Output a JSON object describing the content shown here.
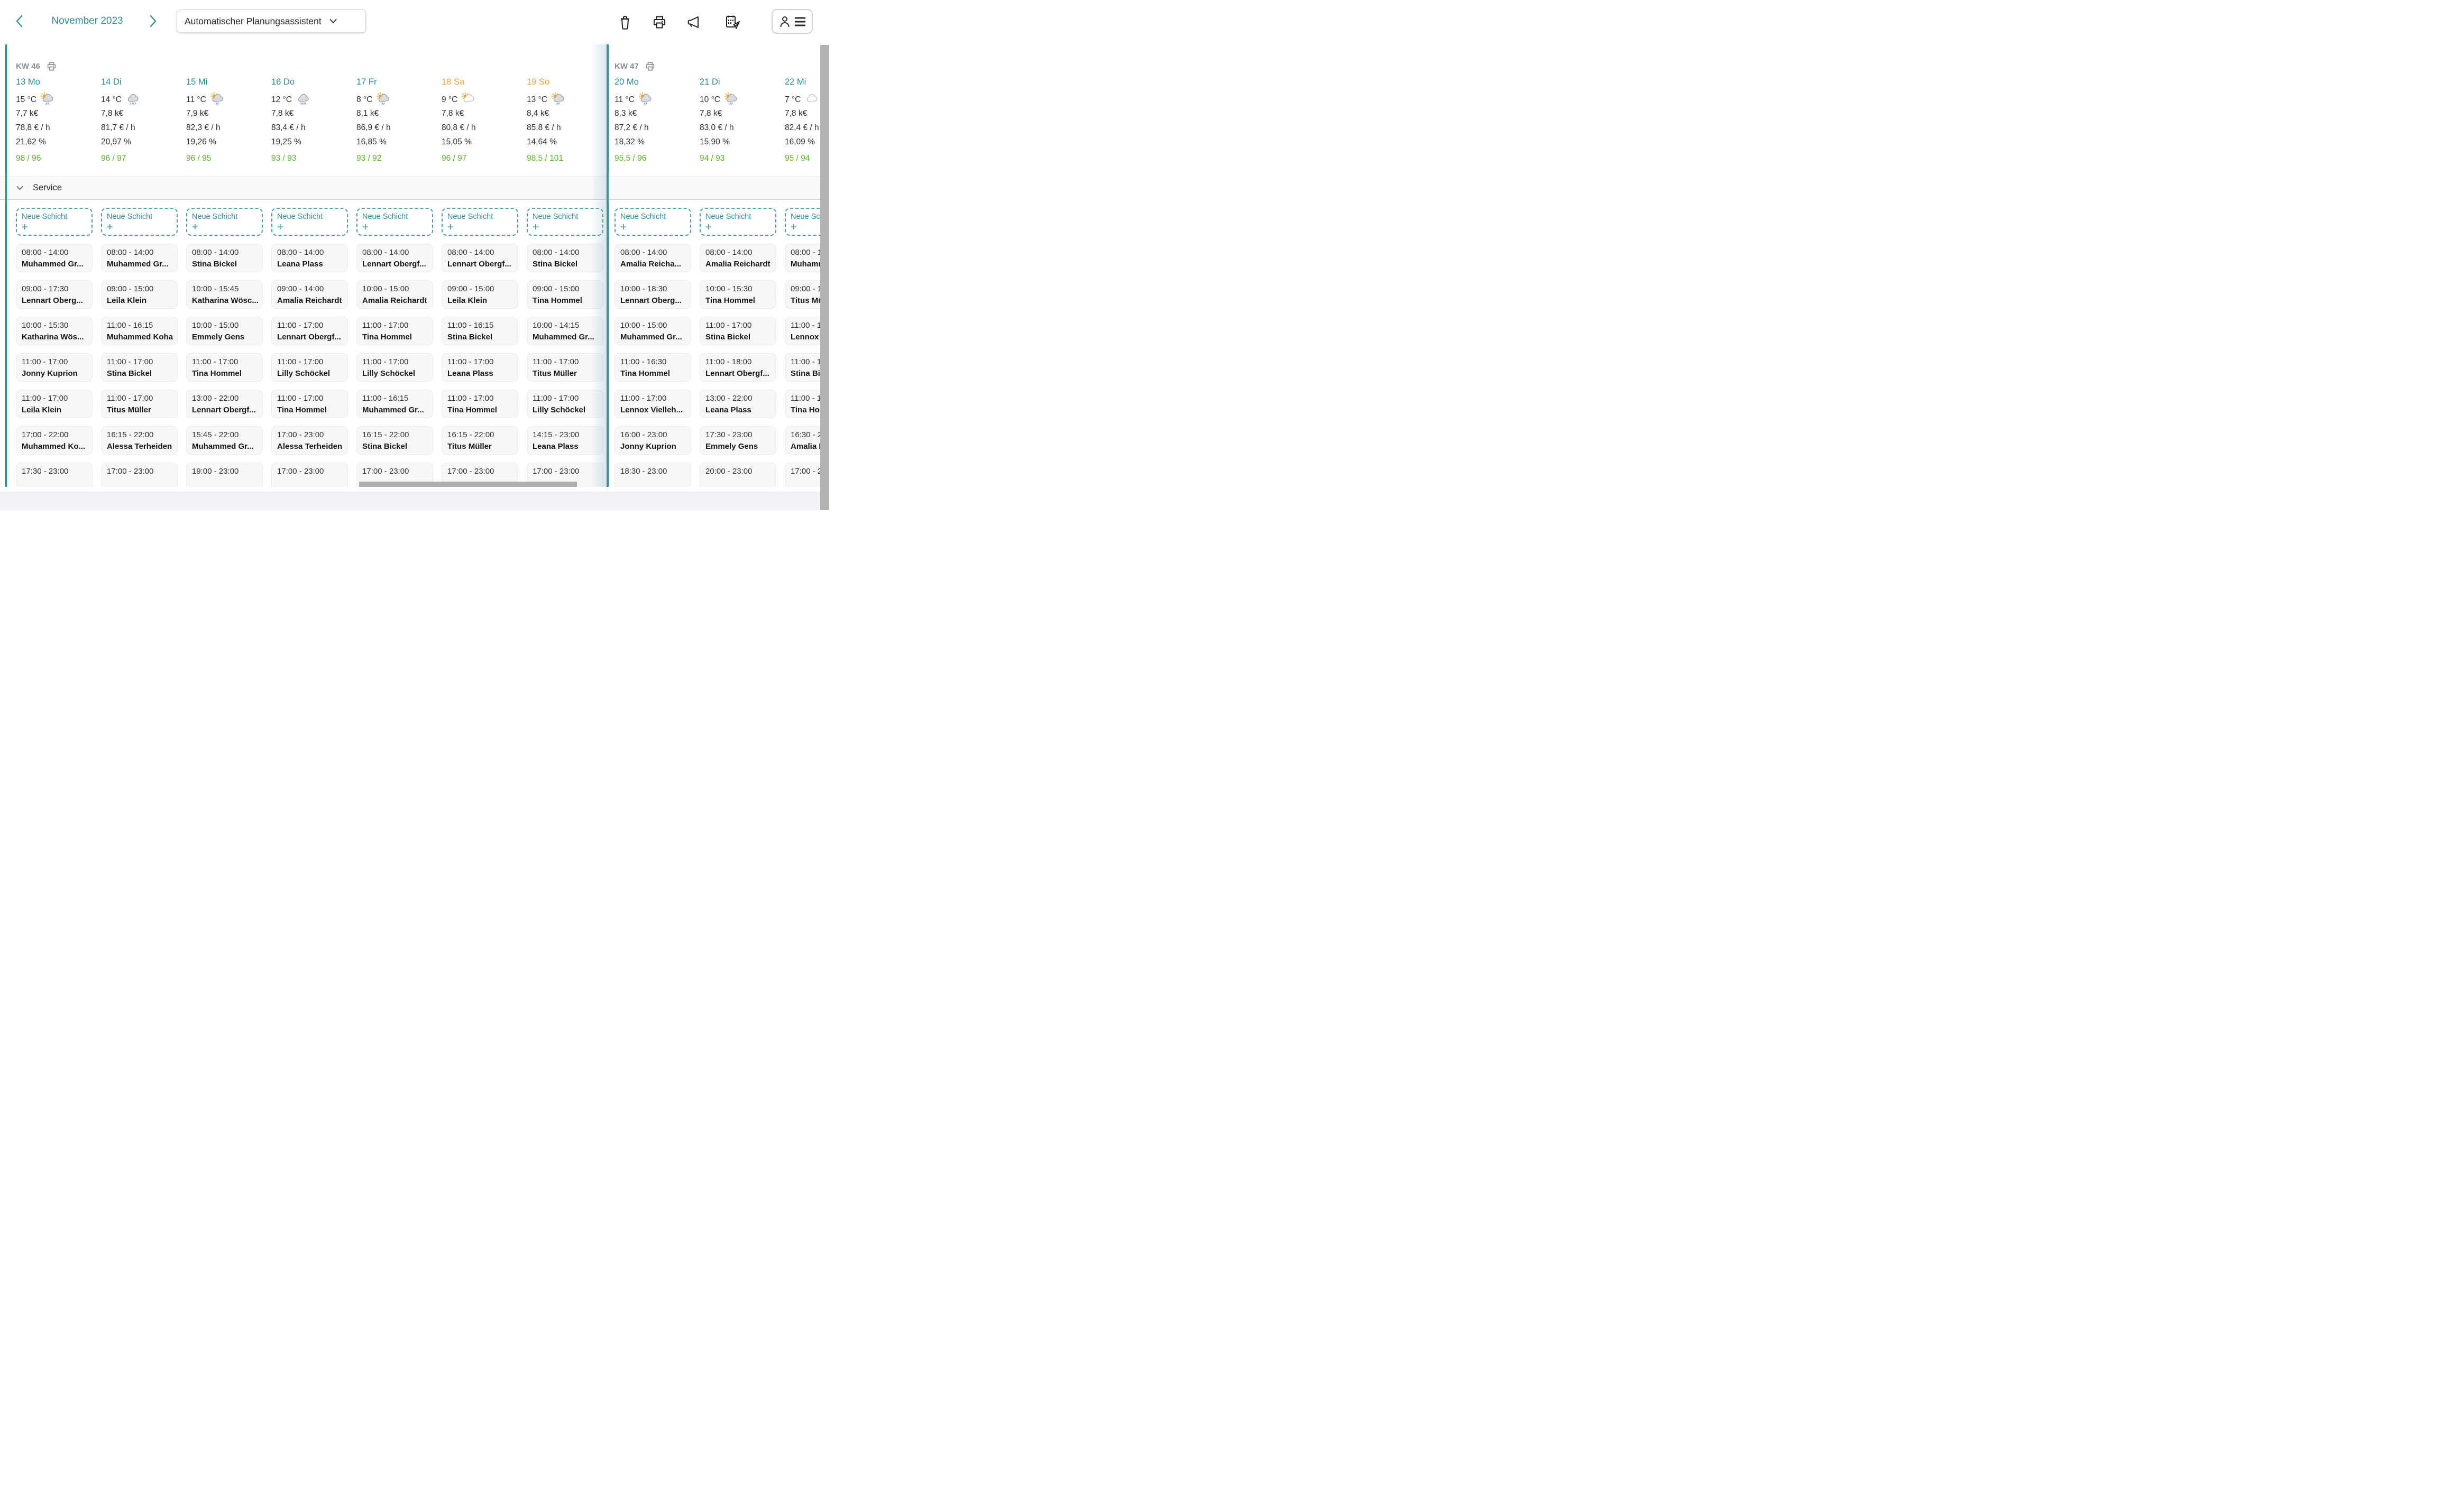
{
  "header": {
    "month_label": "November 2023",
    "planner_dropdown_label": "Automatischer Planungsassistent",
    "accent_teal": "#2E8D9B",
    "weekend_orange": "#EFA23E",
    "ok_green": "#5CB42F"
  },
  "service_section": {
    "label": "Service"
  },
  "new_shift_label": "Neue Schicht",
  "weeks": [
    {
      "label": "KW 46",
      "days": [
        {
          "date": "13 Mo",
          "weekend": false,
          "temp": "15 °C",
          "weather": "sun-cloud-rain",
          "revenue": "7,7 k€",
          "rate": "78,8 € / h",
          "percent": "21,62 %",
          "ratio": "98 / 96",
          "shifts": [
            {
              "time": "08:00 - 14:00",
              "name": "Muhammed Gr..."
            },
            {
              "time": "09:00 - 17:30",
              "name": "Lennart Oberg..."
            },
            {
              "time": "10:00 - 15:30",
              "name": "Katharina Wös..."
            },
            {
              "time": "11:00 - 17:00",
              "name": "Jonny Kuprion"
            },
            {
              "time": "11:00 - 17:00",
              "name": "Leila Klein"
            },
            {
              "time": "17:00 - 22:00",
              "name": "Muhammed Ko..."
            },
            {
              "time": "17:30 - 23:00",
              "name": ""
            }
          ]
        },
        {
          "date": "14 Di",
          "weekend": false,
          "temp": "14 °C",
          "weather": "cloud-rain",
          "revenue": "7,8 k€",
          "rate": "81,7 € / h",
          "percent": "20,97 %",
          "ratio": "96 / 97",
          "shifts": [
            {
              "time": "08:00 - 14:00",
              "name": "Muhammed Gr..."
            },
            {
              "time": "09:00 - 15:00",
              "name": "Leila Klein"
            },
            {
              "time": "11:00 - 16:15",
              "name": "Muhammed Koha"
            },
            {
              "time": "11:00 - 17:00",
              "name": "Stina Bickel"
            },
            {
              "time": "11:00 - 17:00",
              "name": "Titus Müller"
            },
            {
              "time": "16:15 - 22:00",
              "name": "Alessa Terheiden"
            },
            {
              "time": "17:00 - 23:00",
              "name": ""
            }
          ]
        },
        {
          "date": "15 Mi",
          "weekend": false,
          "temp": "11 °C",
          "weather": "sun-cloud-rain",
          "revenue": "7,9 k€",
          "rate": "82,3 € / h",
          "percent": "19,26 %",
          "ratio": "96 / 95",
          "shifts": [
            {
              "time": "08:00 - 14:00",
              "name": "Stina Bickel"
            },
            {
              "time": "10:00 - 15:45",
              "name": "Katharina Wösc..."
            },
            {
              "time": "10:00 - 15:00",
              "name": "Emmely Gens"
            },
            {
              "time": "11:00 - 17:00",
              "name": "Tina Hommel"
            },
            {
              "time": "13:00 - 22:00",
              "name": "Lennart Obergf..."
            },
            {
              "time": "15:45 - 22:00",
              "name": "Muhammed Gr..."
            },
            {
              "time": "19:00 - 23:00",
              "name": ""
            }
          ]
        },
        {
          "date": "16 Do",
          "weekend": false,
          "temp": "12 °C",
          "weather": "cloud-rain",
          "revenue": "7,8 k€",
          "rate": "83,4 € / h",
          "percent": "19,25 %",
          "ratio": "93 / 93",
          "shifts": [
            {
              "time": "08:00 - 14:00",
              "name": "Leana Plass"
            },
            {
              "time": "09:00 - 14:00",
              "name": "Amalia Reichardt"
            },
            {
              "time": "11:00 - 17:00",
              "name": "Lennart Obergf..."
            },
            {
              "time": "11:00 - 17:00",
              "name": "Lilly Schöckel"
            },
            {
              "time": "11:00 - 17:00",
              "name": "Tina Hommel"
            },
            {
              "time": "17:00 - 23:00",
              "name": "Alessa Terheiden"
            },
            {
              "time": "17:00 - 23:00",
              "name": ""
            }
          ]
        },
        {
          "date": "17 Fr",
          "weekend": false,
          "temp": "8 °C",
          "weather": "sun-cloud-rain",
          "revenue": "8,1 k€",
          "rate": "86,9 € / h",
          "percent": "16,85 %",
          "ratio": "93 / 92",
          "shifts": [
            {
              "time": "08:00 - 14:00",
              "name": "Lennart Obergf..."
            },
            {
              "time": "10:00 - 15:00",
              "name": "Amalia Reichardt"
            },
            {
              "time": "11:00 - 17:00",
              "name": "Tina Hommel"
            },
            {
              "time": "11:00 - 17:00",
              "name": "Lilly Schöckel"
            },
            {
              "time": "11:00 - 16:15",
              "name": "Muhammed Gr..."
            },
            {
              "time": "16:15 - 22:00",
              "name": "Stina Bickel"
            },
            {
              "time": "17:00 - 23:00",
              "name": ""
            }
          ]
        },
        {
          "date": "18 Sa",
          "weekend": true,
          "temp": "9 °C",
          "weather": "sun-cloud",
          "revenue": "7,8 k€",
          "rate": "80,8 € / h",
          "percent": "15,05 %",
          "ratio": "96 / 97",
          "shifts": [
            {
              "time": "08:00 - 14:00",
              "name": "Lennart Obergf..."
            },
            {
              "time": "09:00 - 15:00",
              "name": "Leila Klein"
            },
            {
              "time": "11:00 - 16:15",
              "name": "Stina Bickel"
            },
            {
              "time": "11:00 - 17:00",
              "name": "Leana Plass"
            },
            {
              "time": "11:00 - 17:00",
              "name": "Tina Hommel"
            },
            {
              "time": "16:15 - 22:00",
              "name": "Titus Müller"
            },
            {
              "time": "17:00 - 23:00",
              "name": ""
            }
          ]
        },
        {
          "date": "19 So",
          "weekend": true,
          "temp": "13 °C",
          "weather": "sun-cloud-rain",
          "revenue": "8,4 k€",
          "rate": "85,8 € / h",
          "percent": "14,64 %",
          "ratio": "98,5 / 101",
          "shifts": [
            {
              "time": "08:00 - 14:00",
              "name": "Stina Bickel"
            },
            {
              "time": "09:00 - 15:00",
              "name": "Tina Hommel"
            },
            {
              "time": "10:00 - 14:15",
              "name": "Muhammed Gr..."
            },
            {
              "time": "11:00 - 17:00",
              "name": "Titus Müller"
            },
            {
              "time": "11:00 - 17:00",
              "name": "Lilly Schöckel"
            },
            {
              "time": "14:15 - 23:00",
              "name": "Leana Plass"
            },
            {
              "time": "17:00 - 23:00",
              "name": ""
            }
          ]
        }
      ]
    },
    {
      "label": "KW 47",
      "days": [
        {
          "date": "20 Mo",
          "weekend": false,
          "temp": "11 °C",
          "weather": "sun-cloud-rain",
          "revenue": "8,3 k€",
          "rate": "87,2 € / h",
          "percent": "18,32 %",
          "ratio": "95,5 / 96",
          "shifts": [
            {
              "time": "08:00 - 14:00",
              "name": "Amalia Reicha..."
            },
            {
              "time": "10:00 - 18:30",
              "name": "Lennart Oberg..."
            },
            {
              "time": "10:00 - 15:00",
              "name": "Muhammed Gr..."
            },
            {
              "time": "11:00 - 16:30",
              "name": "Tina Hommel"
            },
            {
              "time": "11:00 - 17:00",
              "name": "Lennox Vielleh..."
            },
            {
              "time": "16:00 - 23:00",
              "name": "Jonny Kuprion"
            },
            {
              "time": "18:30 - 23:00",
              "name": ""
            }
          ]
        },
        {
          "date": "21 Di",
          "weekend": false,
          "temp": "10 °C",
          "weather": "sun-cloud-rain",
          "revenue": "7,8 k€",
          "rate": "83,0 € / h",
          "percent": "15,90 %",
          "ratio": "94 / 93",
          "shifts": [
            {
              "time": "08:00 - 14:00",
              "name": "Amalia Reichardt"
            },
            {
              "time": "10:00 - 15:30",
              "name": "Tina Hommel"
            },
            {
              "time": "11:00 - 17:00",
              "name": "Stina Bickel"
            },
            {
              "time": "11:00 - 18:00",
              "name": "Lennart Obergf..."
            },
            {
              "time": "13:00 - 22:00",
              "name": "Leana Plass"
            },
            {
              "time": "17:30 - 23:00",
              "name": "Emmely Gens"
            },
            {
              "time": "20:00 - 23:00",
              "name": ""
            }
          ]
        },
        {
          "date": "22 Mi",
          "weekend": false,
          "temp": "7 °C",
          "weather": "cloud",
          "revenue": "7,8 k€",
          "rate": "82,4 € / h",
          "percent": "16,09 %",
          "ratio": "95 / 94",
          "shifts": [
            {
              "time": "08:00 - 1",
              "name": "Muhamm"
            },
            {
              "time": "09:00 - 1",
              "name": "Titus Mü"
            },
            {
              "time": "11:00 - 1",
              "name": "Lennox V"
            },
            {
              "time": "11:00 - 1",
              "name": "Stina Bic"
            },
            {
              "time": "11:00 - 1",
              "name": "Tina Hon"
            },
            {
              "time": "16:30 - 2",
              "name": "Amalia R"
            },
            {
              "time": "17:00 - 2",
              "name": ""
            }
          ]
        }
      ]
    }
  ]
}
